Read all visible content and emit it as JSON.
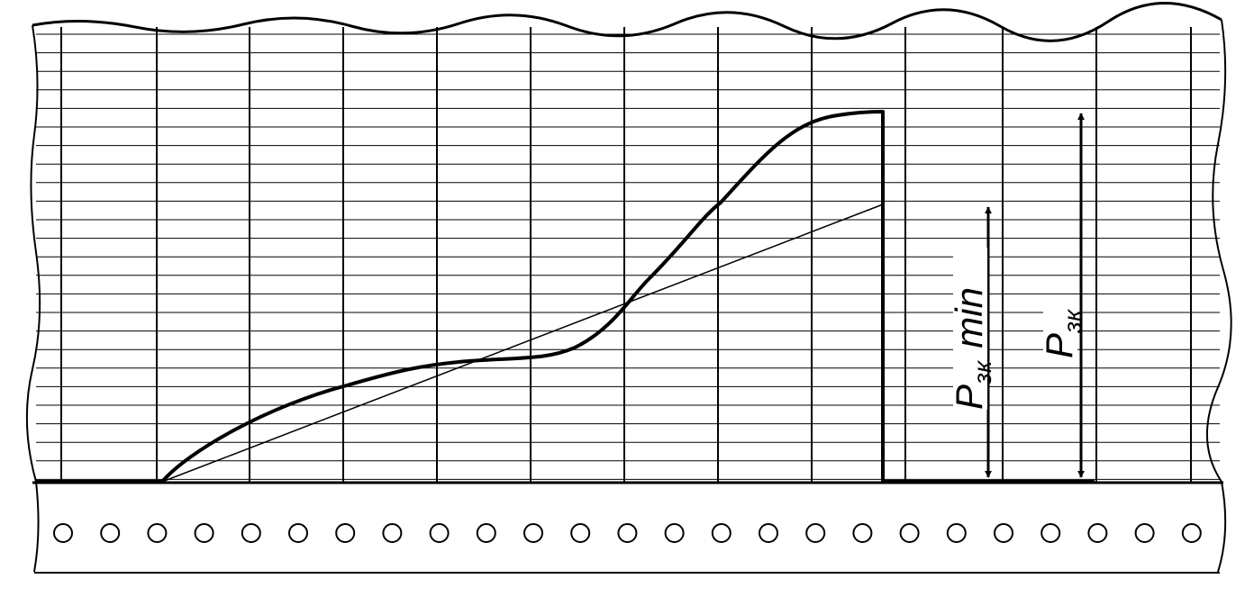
{
  "labels": [
    {
      "symbol": "P",
      "subscript": "зк",
      "suffix": "min"
    },
    {
      "symbol": "P",
      "subscript": "зк"
    }
  ]
}
